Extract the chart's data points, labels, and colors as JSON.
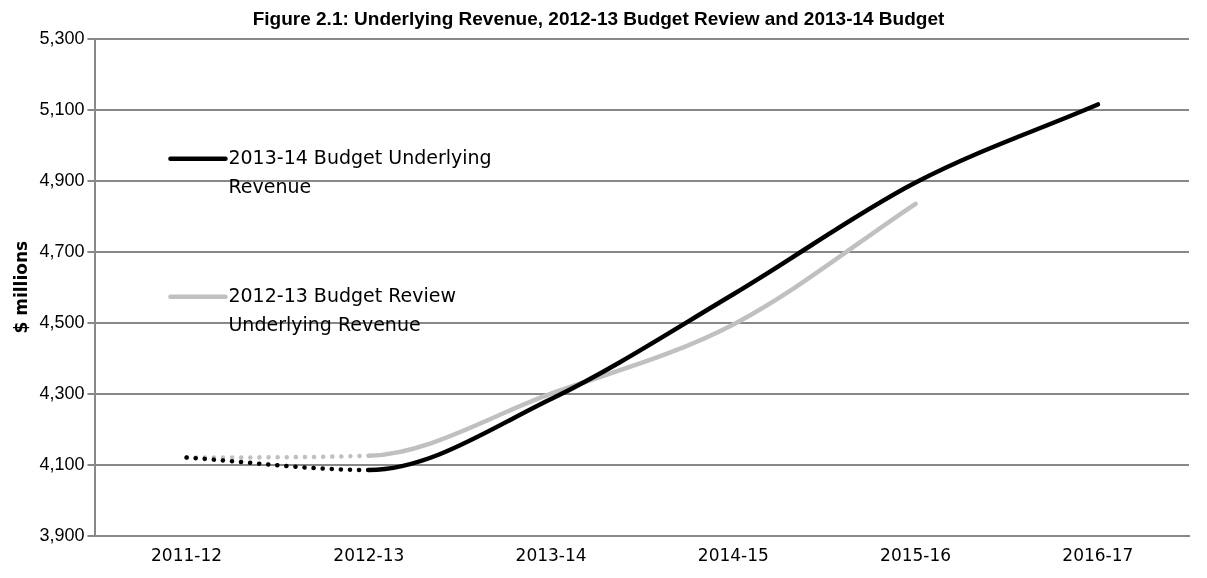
{
  "chart_data": {
    "type": "line",
    "title": "Figure 2.1: Underlying Revenue, 2012-13 Budget Review and 2013-14 Budget",
    "ylabel": "$ millions",
    "categories": [
      "2011-12",
      "2012-13",
      "2013-14",
      "2014-15",
      "2015-16",
      "2016-17"
    ],
    "series": [
      {
        "name": "2013-14 Budget Underlying Revenue",
        "color": "#000000",
        "values": [
          4120,
          4085,
          4285,
          4580,
          4895,
          5115
        ]
      },
      {
        "name": "2012-13 Budget Review Underlying Revenue",
        "color": "#c0c0c0",
        "values": [
          4120,
          4125,
          4300,
          4495,
          4835,
          null
        ]
      }
    ],
    "ylim": [
      3900,
      5300
    ],
    "yticks": [
      {
        "value": 3900,
        "label": "3,900"
      },
      {
        "value": 4100,
        "label": "4,100"
      },
      {
        "value": 4300,
        "label": "4,300"
      },
      {
        "value": 4500,
        "label": "4,500"
      },
      {
        "value": 4700,
        "label": "4,700"
      },
      {
        "value": 4900,
        "label": "4,900"
      },
      {
        "value": 5100,
        "label": "5,100"
      },
      {
        "value": 5300,
        "label": "5,300"
      }
    ],
    "grid": "y",
    "legend": "top left",
    "marker": "none"
  }
}
